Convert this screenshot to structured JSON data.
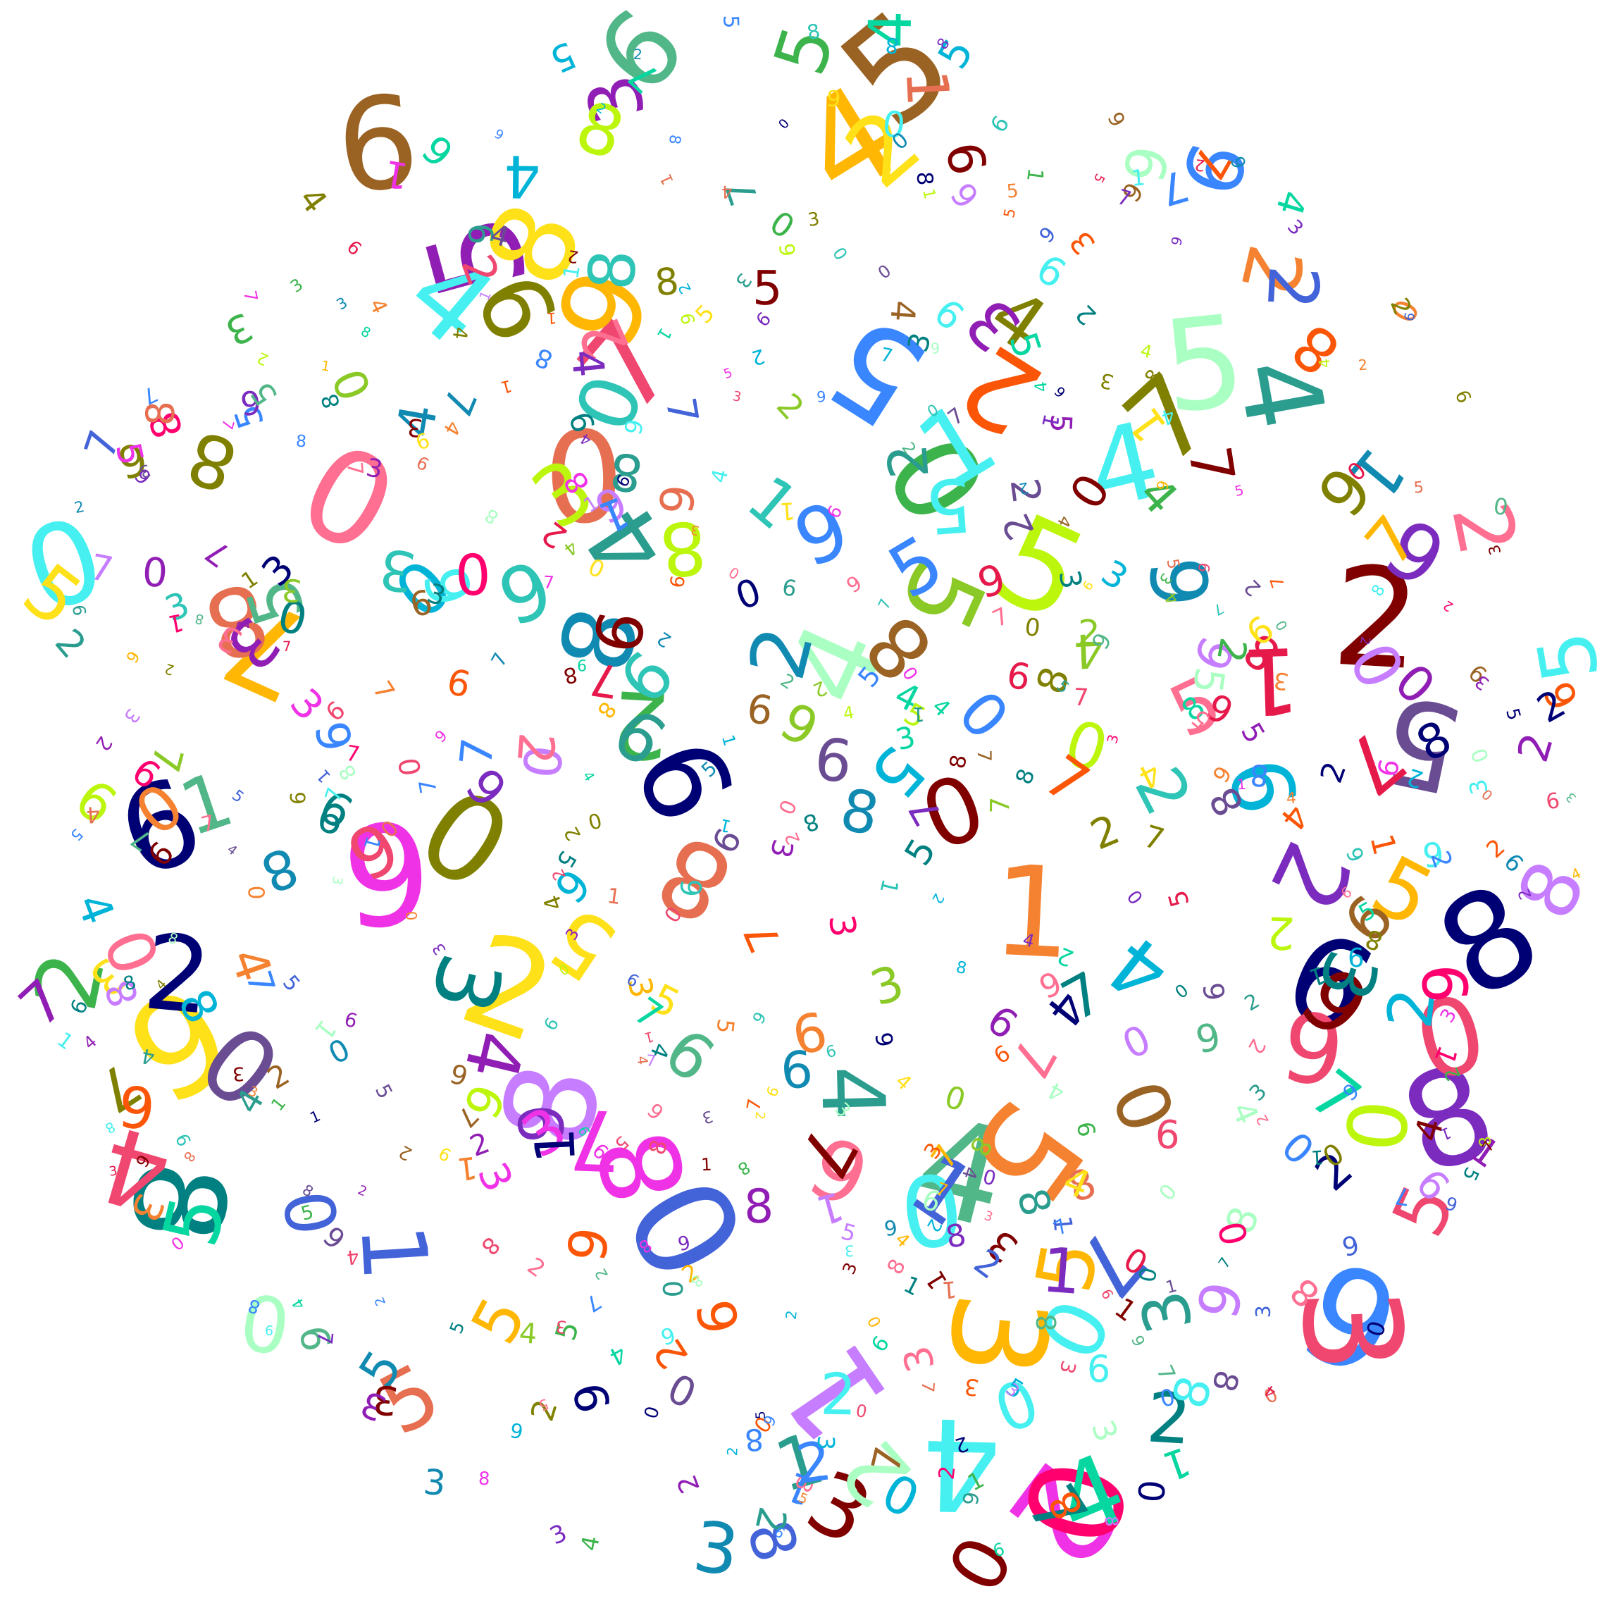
{
  "artwork": {
    "glyph_set": [
      "0",
      "1",
      "2",
      "3",
      "4",
      "5",
      "6",
      "7",
      "8",
      "9"
    ],
    "palette": [
      "#e6194b",
      "#3cb44b",
      "#ffe119",
      "#4363d8",
      "#f58231",
      "#911eb4",
      "#46f0f0",
      "#f032e6",
      "#bcf60c",
      "#2a9d8f",
      "#008080",
      "#9a6324",
      "#800000",
      "#aaffc3",
      "#808000",
      "#000075",
      "#7b2cbf",
      "#ff6f91",
      "#00b4d8",
      "#52b788",
      "#e76f51",
      "#6a4c93",
      "#06d6a0",
      "#ef476f",
      "#118ab2",
      "#ffb703",
      "#8ac926",
      "#c77dff",
      "#fb5607",
      "#3a86ff",
      "#ff006e",
      "#2ec4b6"
    ],
    "background": "#ffffff",
    "shape": "circle"
  }
}
